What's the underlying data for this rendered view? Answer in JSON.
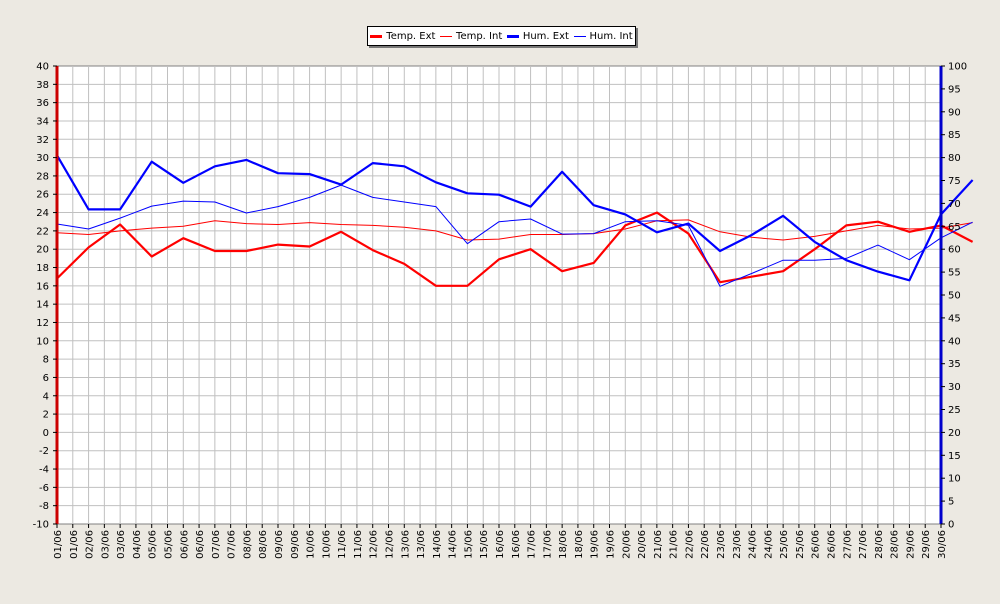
{
  "chart_data": {
    "type": "line",
    "title": "",
    "x": [
      "01/06",
      "01/06",
      "02/06",
      "03/06",
      "03/06",
      "04/06",
      "05/06",
      "05/06",
      "06/06",
      "06/06",
      "07/06",
      "07/06",
      "08/06",
      "08/06",
      "09/06",
      "09/06",
      "10/06",
      "10/06",
      "11/06",
      "11/06",
      "12/06",
      "12/06",
      "13/06",
      "13/06",
      "14/06",
      "14/06",
      "15/06",
      "15/06",
      "16/06",
      "16/06",
      "17/06",
      "17/06",
      "18/06",
      "18/06",
      "19/06",
      "19/06",
      "20/06",
      "20/06",
      "21/06",
      "21/06",
      "22/06",
      "22/06",
      "23/06",
      "23/06",
      "24/06",
      "24/06",
      "25/06",
      "25/06",
      "26/06",
      "26/06",
      "27/06",
      "27/06",
      "28/06",
      "28/06",
      "29/06",
      "29/06",
      "30/06"
    ],
    "xlabel": "",
    "y_left": {
      "label": "",
      "ylim": [
        -10,
        40
      ],
      "ticks": [
        "40",
        "38",
        "36",
        "34",
        "32",
        "30",
        "28",
        "26",
        "24",
        "22",
        "20",
        "18",
        "16",
        "14",
        "12",
        "10",
        "8",
        "6",
        "4",
        "2",
        "0",
        "-2",
        "-4",
        "-6",
        "-8",
        "-10"
      ]
    },
    "y_right": {
      "label": "",
      "ylim": [
        0,
        100
      ],
      "ticks": [
        "100",
        "95",
        "90",
        "85",
        "80",
        "75",
        "70",
        "65",
        "60",
        "55",
        "50",
        "45",
        "40",
        "35",
        "30",
        "25",
        "20",
        "15",
        "10",
        "5",
        "0"
      ]
    },
    "grid": true,
    "legend_position": "top-center",
    "series": [
      {
        "name": "Temp. Ext",
        "axis": "left",
        "color": "#ff0000",
        "weight": "thick",
        "points": [
          [
            0,
            16.8
          ],
          [
            2,
            20.2
          ],
          [
            4,
            22.7
          ],
          [
            6,
            19.2
          ],
          [
            8,
            21.2
          ],
          [
            10,
            19.8
          ],
          [
            12,
            19.8
          ],
          [
            14,
            20.5
          ],
          [
            16,
            20.3
          ],
          [
            18,
            21.9
          ],
          [
            20,
            19.9
          ],
          [
            22,
            18.4
          ],
          [
            24,
            16.0
          ],
          [
            26,
            16.0
          ],
          [
            28,
            18.9
          ],
          [
            30,
            20.0
          ],
          [
            32,
            17.6
          ],
          [
            34,
            18.5
          ],
          [
            36,
            22.6
          ],
          [
            38,
            24.0
          ],
          [
            40,
            21.7
          ],
          [
            42,
            16.4
          ],
          [
            44,
            17.0
          ],
          [
            46,
            17.6
          ],
          [
            48,
            20.0
          ],
          [
            50,
            22.6
          ],
          [
            52,
            23.0
          ],
          [
            54,
            21.9
          ],
          [
            56,
            22.6
          ],
          [
            58,
            20.8
          ]
        ]
      },
      {
        "name": "Temp. Int",
        "axis": "left",
        "color": "#ff0000",
        "weight": "thin",
        "points": [
          [
            0,
            21.8
          ],
          [
            2,
            21.6
          ],
          [
            4,
            22.0
          ],
          [
            6,
            22.3
          ],
          [
            8,
            22.5
          ],
          [
            10,
            23.1
          ],
          [
            12,
            22.8
          ],
          [
            14,
            22.7
          ],
          [
            16,
            22.9
          ],
          [
            18,
            22.7
          ],
          [
            20,
            22.6
          ],
          [
            22,
            22.4
          ],
          [
            24,
            22.0
          ],
          [
            26,
            21.0
          ],
          [
            28,
            21.1
          ],
          [
            30,
            21.6
          ],
          [
            32,
            21.6
          ],
          [
            34,
            21.7
          ],
          [
            36,
            22.2
          ],
          [
            38,
            23.1
          ],
          [
            40,
            23.2
          ],
          [
            42,
            21.9
          ],
          [
            44,
            21.3
          ],
          [
            46,
            21.0
          ],
          [
            48,
            21.4
          ],
          [
            50,
            22.0
          ],
          [
            52,
            22.6
          ],
          [
            54,
            22.2
          ],
          [
            56,
            22.3
          ],
          [
            58,
            22.9
          ]
        ]
      },
      {
        "name": "Hum. Ext",
        "axis": "right",
        "color": "#0000ff",
        "weight": "thick",
        "points": [
          [
            0,
            80.5
          ],
          [
            2,
            68.7
          ],
          [
            4,
            68.7
          ],
          [
            6,
            79.1
          ],
          [
            8,
            74.5
          ],
          [
            10,
            78.1
          ],
          [
            12,
            79.5
          ],
          [
            14,
            76.6
          ],
          [
            16,
            76.4
          ],
          [
            18,
            74.1
          ],
          [
            20,
            78.8
          ],
          [
            22,
            78.1
          ],
          [
            24,
            74.6
          ],
          [
            26,
            72.2
          ],
          [
            28,
            71.9
          ],
          [
            30,
            69.3
          ],
          [
            32,
            76.9
          ],
          [
            34,
            69.6
          ],
          [
            36,
            67.6
          ],
          [
            38,
            63.7
          ],
          [
            40,
            65.6
          ],
          [
            42,
            59.6
          ],
          [
            44,
            63.1
          ],
          [
            46,
            67.3
          ],
          [
            48,
            61.6
          ],
          [
            50,
            57.6
          ],
          [
            52,
            55.1
          ],
          [
            54,
            53.2
          ],
          [
            56,
            67.6
          ],
          [
            58,
            75.1
          ]
        ]
      },
      {
        "name": "Hum. Int",
        "axis": "right",
        "color": "#0000ff",
        "weight": "thin",
        "points": [
          [
            0,
            65.5
          ],
          [
            2,
            64.4
          ],
          [
            4,
            66.8
          ],
          [
            6,
            69.4
          ],
          [
            8,
            70.5
          ],
          [
            10,
            70.3
          ],
          [
            12,
            67.9
          ],
          [
            14,
            69.3
          ],
          [
            16,
            71.3
          ],
          [
            18,
            74.0
          ],
          [
            20,
            71.3
          ],
          [
            22,
            70.3
          ],
          [
            24,
            69.3
          ],
          [
            26,
            61.2
          ],
          [
            28,
            66.0
          ],
          [
            30,
            66.6
          ],
          [
            32,
            63.3
          ],
          [
            34,
            63.4
          ],
          [
            36,
            66.0
          ],
          [
            38,
            66.2
          ],
          [
            40,
            65.2
          ],
          [
            42,
            51.9
          ],
          [
            44,
            54.7
          ],
          [
            46,
            57.6
          ],
          [
            48,
            57.6
          ],
          [
            50,
            58.0
          ],
          [
            52,
            60.9
          ],
          [
            54,
            57.7
          ],
          [
            56,
            62.5
          ],
          [
            58,
            65.9
          ]
        ]
      }
    ]
  }
}
